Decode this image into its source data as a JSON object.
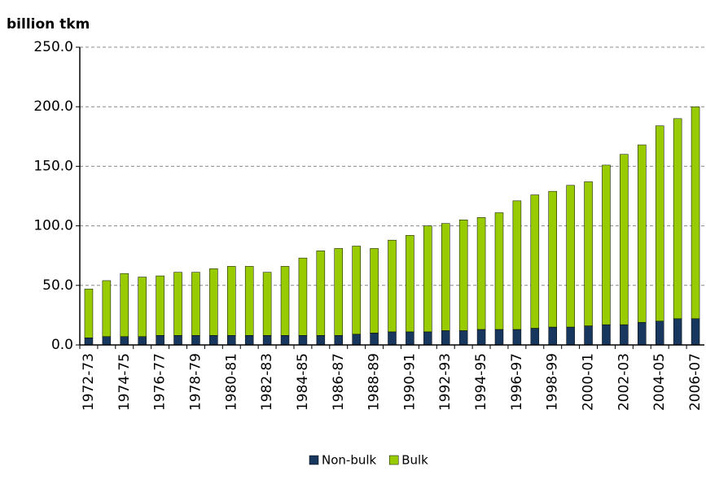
{
  "chart_data": {
    "type": "stacked_bar",
    "title": "billion tkm",
    "categories": [
      "1972-73",
      null,
      "1974-75",
      null,
      "1976-77",
      null,
      "1978-79",
      null,
      "1980-81",
      null,
      "1982-83",
      null,
      "1984-85",
      null,
      "1986-87",
      null,
      "1988-89",
      null,
      "1990-91",
      null,
      "1992-93",
      null,
      "1994-95",
      null,
      "1996-97",
      null,
      "1998-99",
      null,
      "2000-01",
      null,
      "2002-03",
      null,
      "2004-05",
      null,
      "2006-07"
    ],
    "series": [
      {
        "name": "Non-bulk",
        "color": "#17375e",
        "values": [
          6,
          7,
          7,
          7,
          8,
          8,
          8,
          8,
          8,
          8,
          8,
          8,
          8,
          8,
          8,
          9,
          10,
          11,
          11,
          11,
          12,
          12,
          13,
          13,
          13,
          14,
          15,
          15,
          16,
          17,
          17,
          19,
          20,
          22,
          22
        ]
      },
      {
        "name": "Bulk",
        "color": "#99cc00",
        "values": [
          41,
          47,
          53,
          50,
          50,
          53,
          53,
          56,
          58,
          58,
          53,
          58,
          65,
          71,
          73,
          74,
          71,
          77,
          81,
          89,
          90,
          93,
          94,
          98,
          108,
          112,
          114,
          119,
          121,
          134,
          143,
          149,
          164,
          168,
          178
        ]
      }
    ],
    "ylim": [
      0,
      250
    ],
    "yticks": [
      {
        "value": 0,
        "label": "0.0"
      },
      {
        "value": 50,
        "label": "50.0"
      },
      {
        "value": 100,
        "label": "100.0"
      },
      {
        "value": 150,
        "label": "150.0"
      },
      {
        "value": 200,
        "label": "200.0"
      },
      {
        "value": 250,
        "label": "250.0"
      }
    ],
    "grid": true,
    "legend": "bottom"
  }
}
